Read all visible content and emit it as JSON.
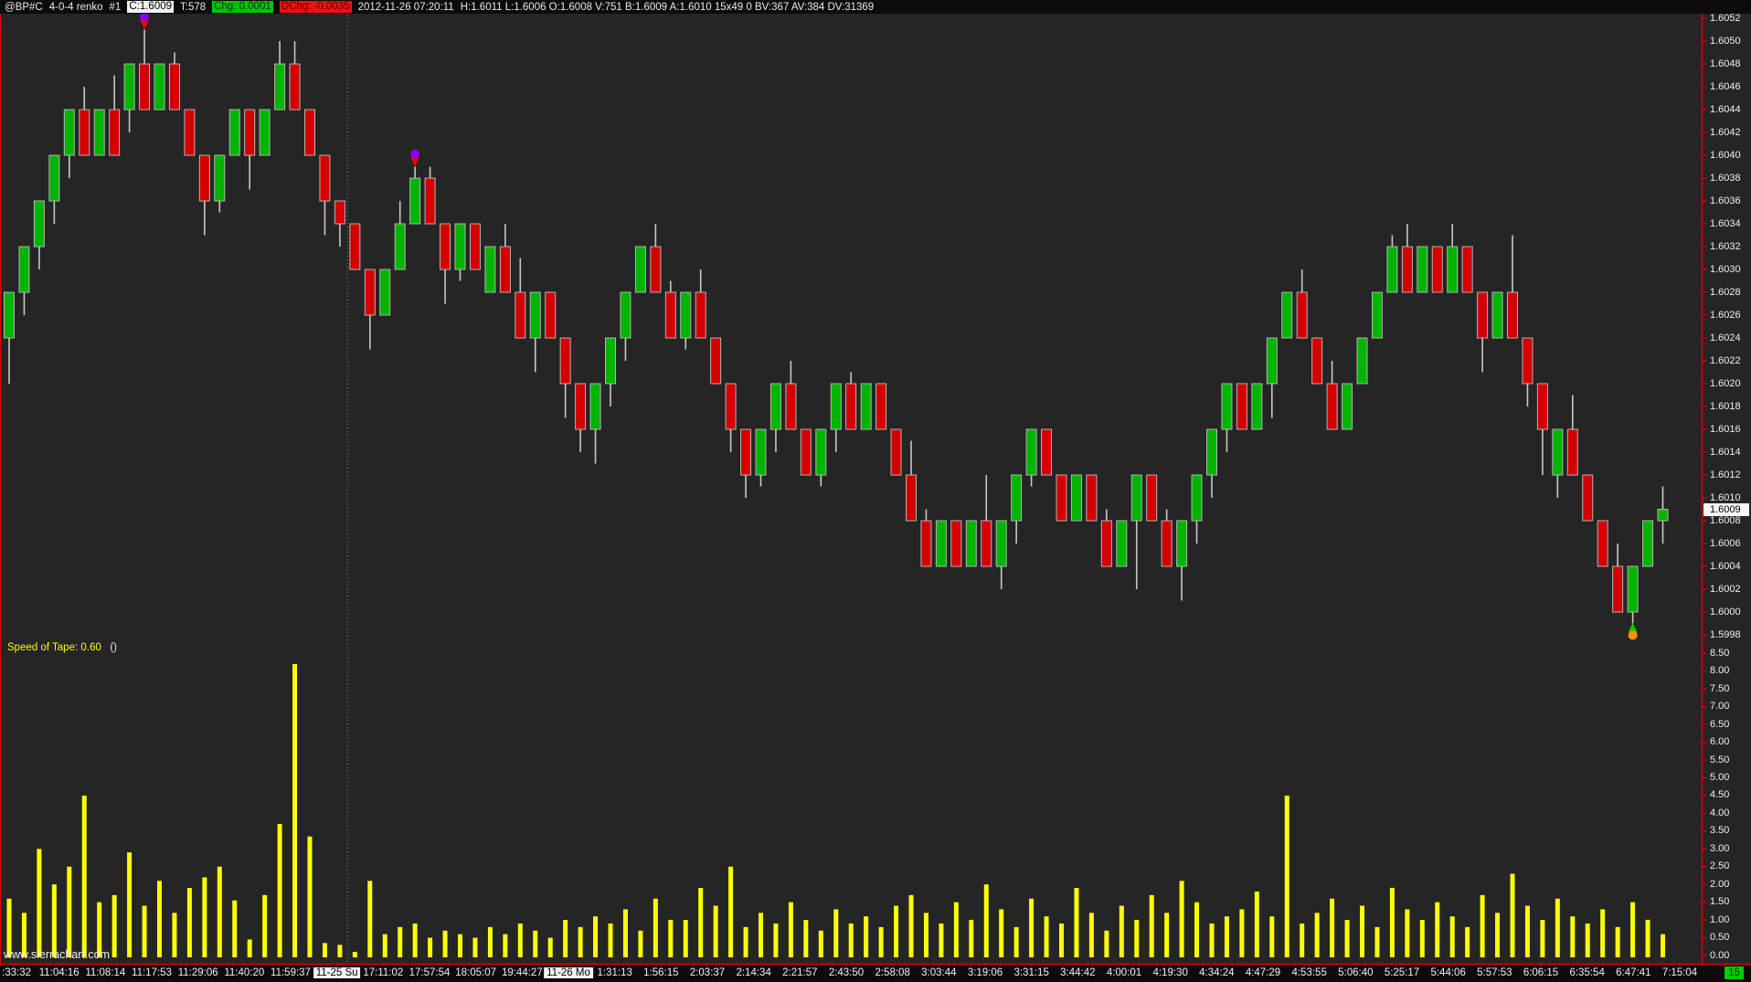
{
  "header": {
    "symbol": "@BP#C",
    "settings": "4-0-4 renko",
    "chart_number": "#1",
    "close_chip": "C:1.6009",
    "trades": "T:578",
    "chg_chip": "Chg: 0.0001",
    "dchg_chip": "DChg: -0.0035",
    "datetime": "2012-11-26 07:20:11",
    "stats": "H:1.6011 L:1.6006 O:1.6008 V:751 B:1.6009 A:1.6010 15x49 0 BV:367 AV:384 DV:31369"
  },
  "study_label": {
    "text": "Speed of Tape: 0.60",
    "suffix": "()"
  },
  "watermark": "www.sierrachart.com",
  "last_price": "1.6009",
  "corner_badge": "15",
  "colors": {
    "background": "#252525",
    "axis_line": "#e00000",
    "up": "#00b400",
    "down": "#d40000",
    "wick": "#c8c8c8",
    "body_outline": "#b4b4b4",
    "histogram": "#ffff00",
    "text": "#f0f0f0",
    "high_marker": "#8800ee",
    "high_marker_arrow": "#ee0000",
    "low_marker": "#ff9000",
    "low_marker_arrow": "#00cc00",
    "session_line": "#8a8a8a"
  },
  "chart_data": {
    "type": "candlestick+histogram",
    "title": "@BP#C 4-0-4 renko #1",
    "price_pane": {
      "axis": {
        "max": 1.6052,
        "min": 1.5998,
        "step": 0.0002,
        "last_price": 1.6009
      },
      "ohlc": [
        [
          1.6024,
          1.6028,
          1.602,
          1.6028
        ],
        [
          1.6028,
          1.6032,
          1.6026,
          1.6032
        ],
        [
          1.6032,
          1.6036,
          1.603,
          1.6036
        ],
        [
          1.6036,
          1.604,
          1.6034,
          1.604
        ],
        [
          1.604,
          1.6044,
          1.6038,
          1.6044
        ],
        [
          1.6044,
          1.6046,
          1.604,
          1.604
        ],
        [
          1.604,
          1.6044,
          1.604,
          1.6044
        ],
        [
          1.6044,
          1.6047,
          1.604,
          1.604
        ],
        [
          1.6044,
          1.6048,
          1.6042,
          1.6048
        ],
        [
          1.6048,
          1.6051,
          1.6044,
          1.6044
        ],
        [
          1.6044,
          1.6048,
          1.6044,
          1.6048
        ],
        [
          1.6048,
          1.6049,
          1.6044,
          1.6044
        ],
        [
          1.6044,
          1.6044,
          1.604,
          1.604
        ],
        [
          1.604,
          1.604,
          1.6033,
          1.6036
        ],
        [
          1.6036,
          1.604,
          1.6035,
          1.604
        ],
        [
          1.604,
          1.6044,
          1.604,
          1.6044
        ],
        [
          1.6044,
          1.6044,
          1.6037,
          1.604
        ],
        [
          1.604,
          1.6044,
          1.604,
          1.6044
        ],
        [
          1.6044,
          1.605,
          1.6044,
          1.6048
        ],
        [
          1.6048,
          1.605,
          1.6044,
          1.6044
        ],
        [
          1.6044,
          1.6044,
          1.604,
          1.604
        ],
        [
          1.604,
          1.604,
          1.6033,
          1.6036
        ],
        [
          1.6036,
          1.6036,
          1.6032,
          1.6034
        ],
        [
          1.6034,
          1.6034,
          1.603,
          1.603
        ],
        [
          1.603,
          1.603,
          1.6023,
          1.6026
        ],
        [
          1.6026,
          1.603,
          1.6026,
          1.603
        ],
        [
          1.603,
          1.6036,
          1.603,
          1.6034
        ],
        [
          1.6034,
          1.6039,
          1.6034,
          1.6038
        ],
        [
          1.6038,
          1.6039,
          1.6034,
          1.6034
        ],
        [
          1.6034,
          1.6034,
          1.6027,
          1.603
        ],
        [
          1.603,
          1.6034,
          1.6029,
          1.6034
        ],
        [
          1.6034,
          1.6034,
          1.603,
          1.603
        ],
        [
          1.6028,
          1.6032,
          1.6028,
          1.6032
        ],
        [
          1.6032,
          1.6034,
          1.6028,
          1.6028
        ],
        [
          1.6028,
          1.6031,
          1.6024,
          1.6024
        ],
        [
          1.6024,
          1.6028,
          1.6021,
          1.6028
        ],
        [
          1.6028,
          1.6028,
          1.6024,
          1.6024
        ],
        [
          1.6024,
          1.6024,
          1.6017,
          1.602
        ],
        [
          1.602,
          1.602,
          1.6014,
          1.6016
        ],
        [
          1.6016,
          1.602,
          1.6013,
          1.602
        ],
        [
          1.602,
          1.6024,
          1.6018,
          1.6024
        ],
        [
          1.6024,
          1.6028,
          1.6022,
          1.6028
        ],
        [
          1.6028,
          1.6032,
          1.6028,
          1.6032
        ],
        [
          1.6032,
          1.6034,
          1.6028,
          1.6028
        ],
        [
          1.6028,
          1.6029,
          1.6024,
          1.6024
        ],
        [
          1.6024,
          1.6028,
          1.6023,
          1.6028
        ],
        [
          1.6028,
          1.603,
          1.6024,
          1.6024
        ],
        [
          1.6024,
          1.6024,
          1.602,
          1.602
        ],
        [
          1.602,
          1.602,
          1.6014,
          1.6016
        ],
        [
          1.6016,
          1.6016,
          1.601,
          1.6012
        ],
        [
          1.6012,
          1.6016,
          1.6011,
          1.6016
        ],
        [
          1.6016,
          1.602,
          1.6014,
          1.602
        ],
        [
          1.602,
          1.6022,
          1.6016,
          1.6016
        ],
        [
          1.6016,
          1.6016,
          1.6012,
          1.6012
        ],
        [
          1.6012,
          1.6016,
          1.6011,
          1.6016
        ],
        [
          1.6016,
          1.602,
          1.6014,
          1.602
        ],
        [
          1.602,
          1.6021,
          1.6016,
          1.6016
        ],
        [
          1.6016,
          1.602,
          1.6016,
          1.602
        ],
        [
          1.602,
          1.602,
          1.6016,
          1.6016
        ],
        [
          1.6016,
          1.6016,
          1.6012,
          1.6012
        ],
        [
          1.6012,
          1.6015,
          1.6008,
          1.6008
        ],
        [
          1.6008,
          1.6009,
          1.6004,
          1.6004
        ],
        [
          1.6004,
          1.6008,
          1.6004,
          1.6008
        ],
        [
          1.6008,
          1.6008,
          1.6004,
          1.6004
        ],
        [
          1.6004,
          1.6008,
          1.6004,
          1.6008
        ],
        [
          1.6008,
          1.6012,
          1.6004,
          1.6004
        ],
        [
          1.6004,
          1.6008,
          1.6002,
          1.6008
        ],
        [
          1.6008,
          1.6012,
          1.6006,
          1.6012
        ],
        [
          1.6012,
          1.6016,
          1.6011,
          1.6016
        ],
        [
          1.6016,
          1.6016,
          1.6012,
          1.6012
        ],
        [
          1.6012,
          1.6012,
          1.6008,
          1.6008
        ],
        [
          1.6008,
          1.6012,
          1.6008,
          1.6012
        ],
        [
          1.6012,
          1.6012,
          1.6008,
          1.6008
        ],
        [
          1.6008,
          1.6009,
          1.6004,
          1.6004
        ],
        [
          1.6004,
          1.6008,
          1.6004,
          1.6008
        ],
        [
          1.6008,
          1.6012,
          1.6002,
          1.6012
        ],
        [
          1.6012,
          1.6012,
          1.6008,
          1.6008
        ],
        [
          1.6008,
          1.6009,
          1.6004,
          1.6004
        ],
        [
          1.6004,
          1.6008,
          1.6001,
          1.6008
        ],
        [
          1.6008,
          1.6012,
          1.6006,
          1.6012
        ],
        [
          1.6012,
          1.6016,
          1.601,
          1.6016
        ],
        [
          1.6016,
          1.602,
          1.6014,
          1.602
        ],
        [
          1.602,
          1.602,
          1.6016,
          1.6016
        ],
        [
          1.6016,
          1.602,
          1.6016,
          1.602
        ],
        [
          1.602,
          1.6024,
          1.6017,
          1.6024
        ],
        [
          1.6024,
          1.6028,
          1.6024,
          1.6028
        ],
        [
          1.6028,
          1.603,
          1.6024,
          1.6024
        ],
        [
          1.6024,
          1.6024,
          1.602,
          1.602
        ],
        [
          1.602,
          1.6022,
          1.6016,
          1.6016
        ],
        [
          1.6016,
          1.602,
          1.6016,
          1.602
        ],
        [
          1.602,
          1.6024,
          1.602,
          1.6024
        ],
        [
          1.6024,
          1.6028,
          1.6024,
          1.6028
        ],
        [
          1.6028,
          1.6033,
          1.6028,
          1.6032
        ],
        [
          1.6032,
          1.6034,
          1.6028,
          1.6028
        ],
        [
          1.6028,
          1.6032,
          1.6028,
          1.6032
        ],
        [
          1.6032,
          1.6032,
          1.6028,
          1.6028
        ],
        [
          1.6028,
          1.6034,
          1.6028,
          1.6032
        ],
        [
          1.6032,
          1.6032,
          1.6028,
          1.6028
        ],
        [
          1.6028,
          1.6028,
          1.6021,
          1.6024
        ],
        [
          1.6024,
          1.6028,
          1.6024,
          1.6028
        ],
        [
          1.6028,
          1.6033,
          1.6024,
          1.6024
        ],
        [
          1.6024,
          1.6024,
          1.6018,
          1.602
        ],
        [
          1.602,
          1.602,
          1.6012,
          1.6016
        ],
        [
          1.6012,
          1.6016,
          1.601,
          1.6016
        ],
        [
          1.6016,
          1.6019,
          1.6012,
          1.6012
        ],
        [
          1.6012,
          1.6012,
          1.6008,
          1.6008
        ],
        [
          1.6008,
          1.6008,
          1.6004,
          1.6004
        ],
        [
          1.6004,
          1.6006,
          1.6,
          1.6
        ],
        [
          1.6,
          1.6004,
          1.5999,
          1.6004
        ],
        [
          1.6004,
          1.6008,
          1.6004,
          1.6008
        ],
        [
          1.6008,
          1.6011,
          1.6006,
          1.6009
        ]
      ],
      "markers": [
        {
          "bar": 9,
          "type": "swing-high",
          "note": "purple dot + red down arrow"
        },
        {
          "bar": 27,
          "type": "swing-high",
          "note": "purple dot + red down arrow"
        },
        {
          "bar": 108,
          "type": "swing-low",
          "note": "orange dot + green up arrow"
        }
      ],
      "session_break_after_bar": 22
    },
    "speed_pane": {
      "axis": {
        "max": 8.5,
        "min": 0.0,
        "step": 0.5
      },
      "label": "Speed of Tape: 0.60",
      "current": 0.6,
      "values": [
        1.6,
        1.2,
        3.0,
        2.0,
        2.5,
        4.5,
        1.5,
        1.7,
        2.9,
        1.4,
        2.1,
        1.2,
        1.9,
        2.2,
        2.5,
        1.55,
        0.45,
        1.7,
        3.7,
        8.2,
        3.35,
        0.35,
        0.3,
        0.1,
        2.1,
        0.6,
        0.8,
        0.9,
        0.5,
        0.7,
        0.6,
        0.5,
        0.8,
        0.6,
        0.9,
        0.7,
        0.5,
        1.0,
        0.8,
        1.1,
        0.9,
        1.3,
        0.7,
        1.6,
        1.0,
        1.0,
        1.9,
        1.4,
        2.5,
        0.8,
        1.2,
        0.9,
        1.5,
        1.0,
        0.7,
        1.3,
        0.9,
        1.1,
        0.8,
        1.4,
        1.7,
        1.2,
        0.9,
        1.5,
        1.0,
        2.0,
        1.3,
        0.8,
        1.6,
        1.1,
        0.9,
        1.9,
        1.2,
        0.7,
        1.4,
        1.0,
        1.7,
        1.2,
        2.1,
        1.5,
        0.9,
        1.1,
        1.3,
        1.8,
        1.1,
        4.5,
        0.9,
        1.2,
        1.6,
        1.0,
        1.4,
        0.8,
        1.9,
        1.3,
        1.0,
        1.5,
        1.1,
        0.8,
        1.7,
        1.2,
        2.3,
        1.4,
        1.0,
        1.6,
        1.1,
        0.9,
        1.3,
        0.8,
        1.5,
        1.0,
        0.6
      ]
    },
    "time_axis": {
      "labels": [
        ":33:32",
        "11:04:16",
        "11:08:14",
        "11:17:53",
        "11:29:06",
        "11:40:20",
        "11:59:37",
        "11-25 Su",
        "17:11:02",
        "17:57:54",
        "18:05:07",
        "19:44:27",
        "11-26 Mo",
        "1:31:13",
        "1:56:15",
        "2:03:37",
        "2:14:34",
        "2:21:57",
        "2:43:50",
        "2:58:08",
        "3:03:44",
        "3:19:06",
        "3:31:15",
        "3:44:42",
        "4:00:01",
        "4:19:30",
        "4:34:24",
        "4:47:29",
        "4:53:55",
        "5:06:40",
        "5:25:17",
        "5:44:06",
        "5:57:53",
        "6:06:15",
        "6:35:54",
        "6:47:41",
        "7:15:04"
      ],
      "date_label_indices": [
        7,
        12
      ]
    }
  }
}
